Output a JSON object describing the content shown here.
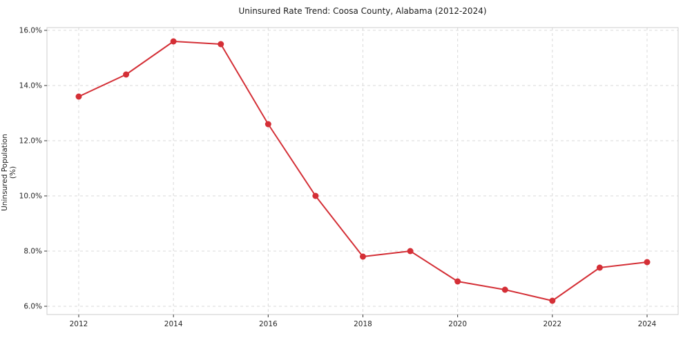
{
  "figure": {
    "title": "Uninsured Rate Trend: Coosa County, Alabama (2012-2024)",
    "ylabel": "Uninsured Population (%)"
  },
  "chart_data": {
    "type": "line",
    "title": "Uninsured Rate Trend: Coosa County, Alabama (2012-2024)",
    "xlabel": "",
    "ylabel": "Uninsured Population (%)",
    "x": [
      2012,
      2013,
      2014,
      2015,
      2016,
      2017,
      2018,
      2019,
      2020,
      2021,
      2022,
      2023,
      2024
    ],
    "values": [
      13.6,
      14.4,
      15.6,
      15.5,
      12.6,
      10.0,
      7.8,
      8.0,
      6.9,
      6.6,
      6.2,
      7.4,
      7.6
    ],
    "series_name": "Uninsured rate",
    "ylim": [
      5.7,
      16.1
    ],
    "yticks": [
      6,
      8,
      10,
      12,
      14,
      16
    ],
    "ytick_labels": [
      "6.0%",
      "8.0%",
      "10.0%",
      "12.0%",
      "14.0%",
      "16.0%"
    ],
    "xticks": [
      2012,
      2014,
      2016,
      2018,
      2020,
      2022,
      2024
    ],
    "xtick_labels": [
      "2012",
      "2014",
      "2016",
      "2018",
      "2020",
      "2022",
      "2024"
    ],
    "grid": "dashed-both",
    "legend": "none",
    "line_color": "#d42f36",
    "grid_color": "#d9d9d9",
    "spine_color": "#cccccc",
    "marker": "circle"
  }
}
